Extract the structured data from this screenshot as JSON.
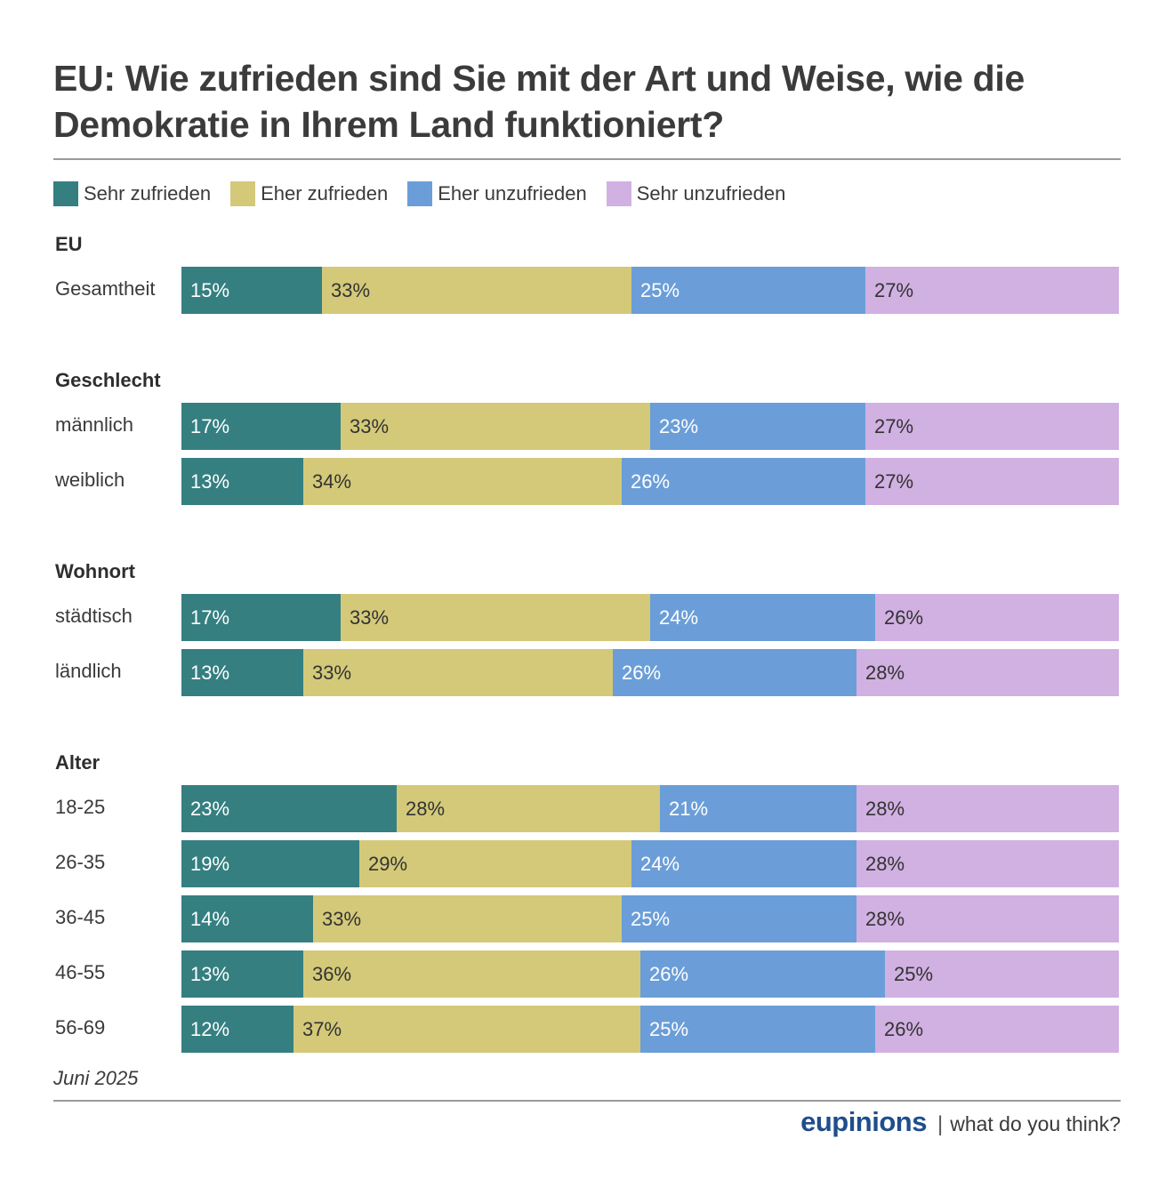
{
  "title": "EU: Wie zufrieden sind Sie mit der Art und Weise, wie die Demokratie in Ihrem Land funktioniert?",
  "colors": {
    "sehr_zufrieden": "#357f81",
    "eher_zufrieden": "#d3c979",
    "eher_unzufrieden": "#6b9ed8",
    "sehr_unzufrieden": "#d1b0e2",
    "label_light": "#ffffff",
    "label_dark": "#333333"
  },
  "legend": [
    {
      "label": "Sehr zufrieden",
      "color": "#357f81"
    },
    {
      "label": "Eher zufrieden",
      "color": "#d3c979"
    },
    {
      "label": "Eher unzufrieden",
      "color": "#6b9ed8"
    },
    {
      "label": "Sehr unzufrieden",
      "color": "#d1b0e2"
    }
  ],
  "chart_data": {
    "type": "bar",
    "stacked": true,
    "orientation": "horizontal",
    "normalized": true,
    "unit": "%",
    "legend_position": "top-left",
    "series_names": [
      "Sehr zufrieden",
      "Eher zufrieden",
      "Eher unzufrieden",
      "Sehr unzufrieden"
    ],
    "groups": [
      {
        "name": "EU",
        "rows": [
          {
            "label": "Gesamtheit",
            "values": [
              15,
              33,
              25,
              27
            ]
          }
        ]
      },
      {
        "name": "Geschlecht",
        "rows": [
          {
            "label": "männlich",
            "values": [
              17,
              33,
              23,
              27
            ]
          },
          {
            "label": "weiblich",
            "values": [
              13,
              34,
              26,
              27
            ]
          }
        ]
      },
      {
        "name": "Wohnort",
        "rows": [
          {
            "label": "städtisch",
            "values": [
              17,
              33,
              24,
              26
            ]
          },
          {
            "label": "ländlich",
            "values": [
              13,
              33,
              26,
              28
            ]
          }
        ]
      },
      {
        "name": "Alter",
        "rows": [
          {
            "label": "18-25",
            "values": [
              23,
              28,
              21,
              28
            ]
          },
          {
            "label": "26-35",
            "values": [
              19,
              29,
              24,
              28
            ]
          },
          {
            "label": "36-45",
            "values": [
              14,
              33,
              25,
              28
            ]
          },
          {
            "label": "46-55",
            "values": [
              13,
              36,
              26,
              25
            ]
          },
          {
            "label": "56-69",
            "values": [
              12,
              37,
              25,
              26
            ]
          }
        ]
      }
    ]
  },
  "note": "Juni 2025",
  "footer": {
    "brand": "eupinions",
    "separator": "|",
    "tagline": "what do you think?"
  }
}
